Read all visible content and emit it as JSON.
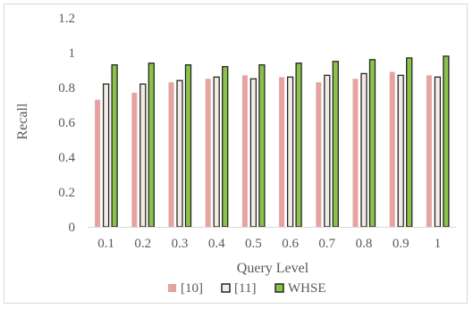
{
  "chart_data": {
    "type": "bar",
    "xlabel": "Query Level",
    "ylabel": "Recall",
    "ylim": [
      0,
      1.2
    ],
    "yticks": [
      "0",
      "0.2",
      "0.4",
      "0.6",
      "0.8",
      "1",
      "1.2"
    ],
    "grid": false,
    "legend_position": "bottom",
    "categories": [
      "0.1",
      "0.2",
      "0.3",
      "0.4",
      "0.5",
      "0.6",
      "0.7",
      "0.8",
      "0.9",
      "1"
    ],
    "series": [
      {
        "name": "[10]",
        "color": "#e6a3a1",
        "outline": "#e6a3a1",
        "values": [
          0.73,
          0.77,
          0.83,
          0.85,
          0.87,
          0.86,
          0.83,
          0.85,
          0.89,
          0.87
        ]
      },
      {
        "name": "[11]",
        "color": "#f2ece4",
        "outline": "#262626",
        "values": [
          0.82,
          0.82,
          0.84,
          0.86,
          0.85,
          0.86,
          0.87,
          0.88,
          0.87,
          0.86
        ]
      },
      {
        "name": "WHSE",
        "color": "#8bc34a",
        "outline": "#262626",
        "values": [
          0.93,
          0.94,
          0.93,
          0.92,
          0.93,
          0.94,
          0.95,
          0.96,
          0.97,
          0.98
        ]
      }
    ]
  }
}
